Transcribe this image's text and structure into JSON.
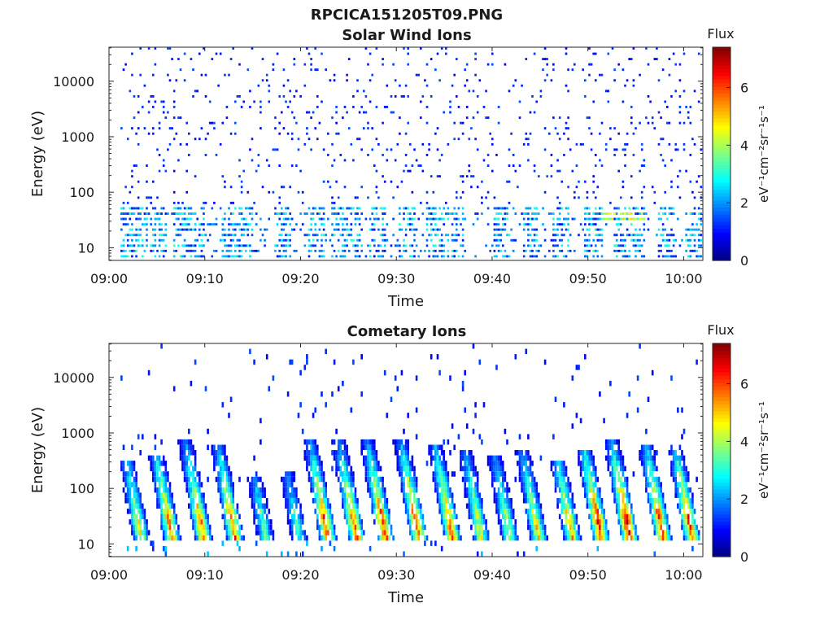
{
  "figure_title": "RPCICA151205T09.PNG",
  "chart_data": [
    {
      "type": "heatmap",
      "title": "Solar Wind Ions",
      "xlabel": "Time",
      "ylabel": "Energy (eV)",
      "yscale": "log",
      "xticks": [
        "09:00",
        "09:10",
        "09:20",
        "09:30",
        "09:40",
        "09:50",
        "10:00"
      ],
      "xlim_minutes": [
        0,
        62
      ],
      "yticks": [
        {
          "value": 10,
          "label": "10"
        },
        {
          "value": 100,
          "label": "100"
        },
        {
          "value": 1000,
          "label": "1000"
        },
        {
          "value": 10000,
          "label": "10000"
        }
      ],
      "ylim": [
        5.9,
        41000
      ],
      "colorbar": {
        "title": "Flux",
        "units": "eV⁻¹cm⁻²sr⁻¹s⁻¹",
        "range": [
          0,
          7.4
        ],
        "ticks": [
          "0",
          "2",
          "4",
          "6"
        ],
        "colormap": "jet"
      },
      "bands": [
        {
          "e_low": 6,
          "e_high": 60,
          "minutes": [
            1.5,
            3,
            5,
            7.5,
            9,
            12.5,
            14,
            18,
            21.5,
            24,
            25.5,
            28,
            31,
            34,
            36,
            41,
            44,
            47,
            50.5,
            53.5,
            55,
            58,
            61
          ],
          "intensity": 2.6
        },
        {
          "e_low": 30,
          "e_high": 45,
          "minutes": [
            52,
            54,
            55
          ],
          "intensity": 4.3
        },
        {
          "e_low": 60,
          "e_high": 30000,
          "minutes": [],
          "intensity": 1.2
        }
      ]
    },
    {
      "type": "heatmap",
      "title": "Cometary Ions",
      "xlabel": "Time",
      "ylabel": "Energy (eV)",
      "yscale": "log",
      "xticks": [
        "09:00",
        "09:10",
        "09:20",
        "09:30",
        "09:40",
        "09:50",
        "10:00"
      ],
      "xlim_minutes": [
        0,
        62
      ],
      "yticks": [
        {
          "value": 10,
          "label": "10"
        },
        {
          "value": 100,
          "label": "100"
        },
        {
          "value": 1000,
          "label": "1000"
        },
        {
          "value": 10000,
          "label": "10000"
        }
      ],
      "ylim": [
        5.9,
        41000
      ],
      "colorbar": {
        "title": "Flux",
        "units": "eV⁻¹cm⁻²sr⁻¹s⁻¹",
        "range": [
          0,
          7.4
        ],
        "ticks": [
          "0",
          "2",
          "4",
          "6"
        ],
        "colormap": "jet"
      },
      "bursts": [
        {
          "minute": 3.0,
          "peak": 4.6,
          "top_energy": 300
        },
        {
          "minute": 6.2,
          "peak": 5.6,
          "top_energy": 400
        },
        {
          "minute": 9.5,
          "peak": 5.8,
          "top_energy": 700
        },
        {
          "minute": 12.8,
          "peak": 5.9,
          "top_energy": 600
        },
        {
          "minute": 16.0,
          "peak": 3.5,
          "top_energy": 150
        },
        {
          "minute": 19.5,
          "peak": 3.2,
          "top_energy": 200
        },
        {
          "minute": 22.5,
          "peak": 6.1,
          "top_energy": 800
        },
        {
          "minute": 25.5,
          "peak": 6.0,
          "top_energy": 700
        },
        {
          "minute": 28.5,
          "peak": 6.3,
          "top_energy": 800
        },
        {
          "minute": 32.0,
          "peak": 6.2,
          "top_energy": 700
        },
        {
          "minute": 35.5,
          "peak": 6.0,
          "top_energy": 600
        },
        {
          "minute": 38.5,
          "peak": 4.6,
          "top_energy": 500
        },
        {
          "minute": 41.5,
          "peak": 4.3,
          "top_energy": 400
        },
        {
          "minute": 44.5,
          "peak": 4.8,
          "top_energy": 500
        },
        {
          "minute": 48.0,
          "peak": 5.3,
          "top_energy": 300
        },
        {
          "minute": 51.0,
          "peak": 6.6,
          "top_energy": 500
        },
        {
          "minute": 54.0,
          "peak": 6.9,
          "top_energy": 700
        },
        {
          "minute": 57.5,
          "peak": 6.3,
          "top_energy": 600
        },
        {
          "minute": 60.5,
          "peak": 6.1,
          "top_energy": 500
        }
      ]
    }
  ]
}
